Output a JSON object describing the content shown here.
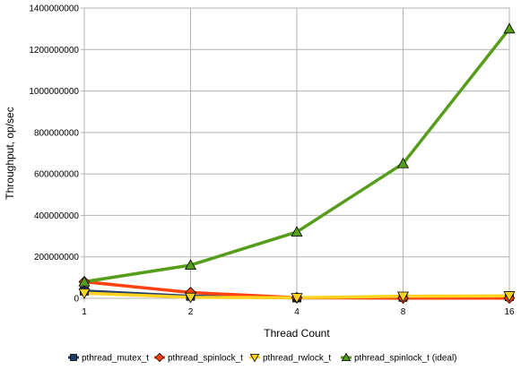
{
  "chart_data": {
    "type": "line",
    "title": "",
    "xlabel": "Thread Count",
    "ylabel": "Throughput, op/sec",
    "x": [
      1,
      2,
      4,
      8,
      16
    ],
    "x_tick_labels": [
      "1",
      "2",
      "4",
      "8",
      "16"
    ],
    "ylim": [
      0,
      1400000000
    ],
    "y_ticks": [
      0,
      200000000,
      400000000,
      600000000,
      800000000,
      1000000000,
      1200000000,
      1400000000
    ],
    "y_tick_labels": [
      "0",
      "200000000",
      "400000000",
      "600000000",
      "800000000",
      "1000000000",
      "1200000000",
      "1400000000"
    ],
    "grid": true,
    "legend_position": "bottom",
    "series": [
      {
        "name": "pthread_mutex_t",
        "color": "#1f3e68",
        "marker": "square",
        "values": [
          35000000,
          10000000,
          2000000,
          5000000,
          8000000
        ]
      },
      {
        "name": "pthread_spinlock_t",
        "color": "#ff420e",
        "marker": "diamond",
        "values": [
          80000000,
          28000000,
          3000000,
          1000000,
          1000000
        ]
      },
      {
        "name": "pthread_rwlock_t",
        "color": "#ffd320",
        "marker": "triangle-down",
        "values": [
          25000000,
          5000000,
          3000000,
          10000000,
          12000000
        ]
      },
      {
        "name": "pthread_spinlock_t (ideal)",
        "color": "#579d1c",
        "marker": "triangle-up",
        "values": [
          80000000,
          160000000,
          320000000,
          650000000,
          1300000000
        ]
      }
    ]
  }
}
